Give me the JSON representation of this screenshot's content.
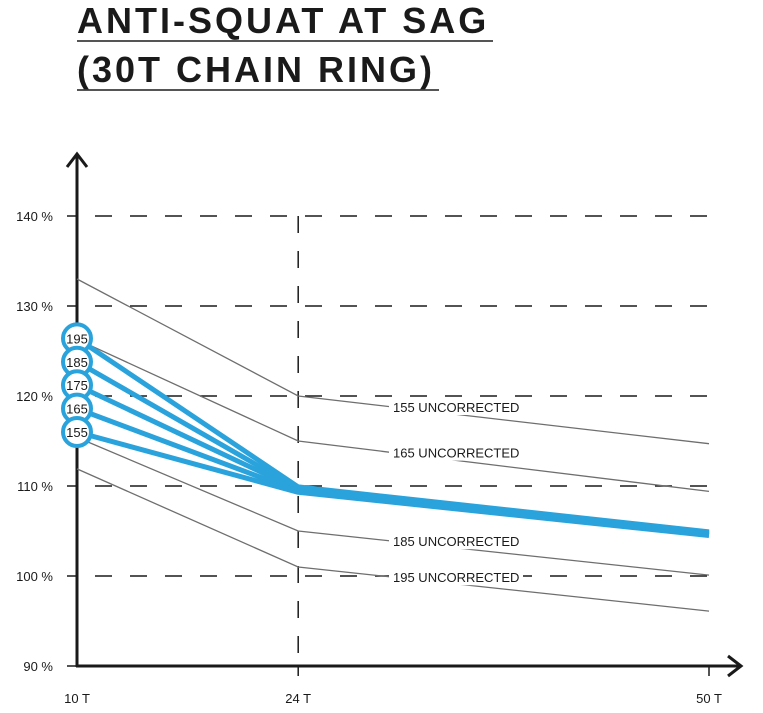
{
  "chart_data": {
    "type": "line",
    "title_lines": [
      "ANTI-SQUAT AT SAG",
      "(30T CHAIN RING)"
    ],
    "x_ticks": [
      {
        "value": 10,
        "label": "10 T"
      },
      {
        "value": 24,
        "label": "24 T"
      },
      {
        "value": 50,
        "label": "50 T"
      }
    ],
    "y_ticks": [
      {
        "value": 90,
        "label": "90 %"
      },
      {
        "value": 100,
        "label": "100 %"
      },
      {
        "value": 110,
        "label": "110 %"
      },
      {
        "value": 120,
        "label": "120 %"
      },
      {
        "value": 130,
        "label": "130 %"
      },
      {
        "value": 140,
        "label": "140 %"
      }
    ],
    "xlim": [
      10,
      50
    ],
    "ylim": [
      90,
      140
    ],
    "grid": true,
    "x": [
      10,
      24,
      50
    ],
    "series": [
      {
        "name": "155 UNCORRECTED",
        "kind": "uncorrected",
        "values": [
          133,
          120,
          114.7
        ]
      },
      {
        "name": "165 UNCORRECTED",
        "kind": "uncorrected",
        "values": [
          126.3,
          115,
          109.4
        ]
      },
      {
        "name": "185 UNCORRECTED",
        "kind": "uncorrected",
        "values": [
          115.4,
          105,
          100.1
        ]
      },
      {
        "name": "195 UNCORRECTED",
        "kind": "uncorrected",
        "values": [
          111.9,
          101,
          96.1
        ]
      },
      {
        "name": "195",
        "kind": "corrected",
        "values": [
          126.4,
          109.9,
          104.9
        ]
      },
      {
        "name": "185",
        "kind": "corrected",
        "values": [
          123.8,
          109.7,
          104.8
        ]
      },
      {
        "name": "175",
        "kind": "corrected",
        "values": [
          121.2,
          109.6,
          104.7
        ]
      },
      {
        "name": "165",
        "kind": "corrected",
        "values": [
          118.6,
          109.4,
          104.6
        ]
      },
      {
        "name": "155",
        "kind": "corrected",
        "values": [
          116.0,
          109.3,
          104.5
        ]
      }
    ],
    "colors": {
      "corrected": "#2aa3dc",
      "uncorrected": "#6e6e6e",
      "axis": "#1a1a1a"
    }
  }
}
